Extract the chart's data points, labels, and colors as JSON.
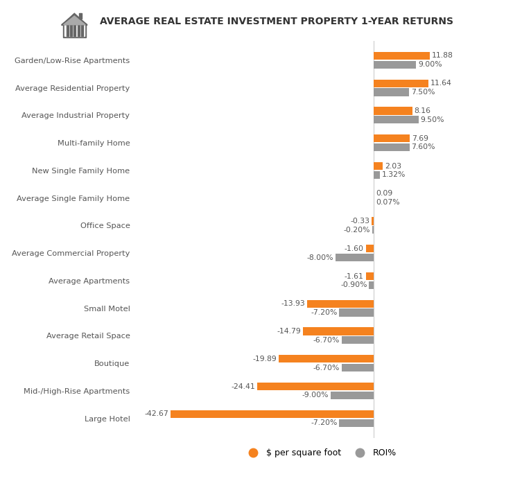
{
  "title": "AVERAGE REAL ESTATE INVESTMENT PROPERTY 1-YEAR RETURNS",
  "categories": [
    "Garden/Low-Rise Apartments",
    "Average Residential Property",
    "Average Industrial Property",
    "Multi-family Home",
    "New Single Family Home",
    "Average Single Family Home",
    "Office Space",
    "Average Commercial Property",
    "Average Apartments",
    "Small Motel",
    "Average Retail Space",
    "Boutique",
    "Mid-/High-Rise Apartments",
    "Large Hotel"
  ],
  "sqft_values": [
    11.88,
    11.64,
    8.16,
    7.69,
    2.03,
    0.09,
    -0.33,
    -1.6,
    -1.61,
    -13.93,
    -14.79,
    -19.89,
    -24.41,
    -42.67
  ],
  "roi_values": [
    9.0,
    7.5,
    9.5,
    7.6,
    1.32,
    0.07,
    -0.2,
    -8.0,
    -0.9,
    -7.2,
    -6.7,
    -6.7,
    -9.0,
    -7.2
  ],
  "sqft_labels": [
    "11.88",
    "11.64",
    "8.16",
    "7.69",
    "2.03",
    "0.09",
    "-0.33",
    "-1.60",
    "-1.61",
    "-13.93",
    "-14.79",
    "-19.89",
    "-24.41",
    "-42.67"
  ],
  "roi_labels": [
    "9.00%",
    "7.50%",
    "9.50%",
    "7.60%",
    "1.32%",
    "0.07%",
    "-0.20%",
    "-8.00%",
    "-0.90%",
    "-7.20%",
    "-6.70%",
    "-6.70%",
    "-9.00%",
    "-7.20%"
  ],
  "orange_color": "#F5821F",
  "gray_color": "#999999",
  "bg_color": "#FFFFFF",
  "title_color": "#333333",
  "label_color": "#555555",
  "bar_height": 0.28,
  "figsize": [
    7.53,
    6.94
  ],
  "dpi": 100,
  "legend_sqft": "$ per square foot",
  "legend_roi": "ROI%"
}
